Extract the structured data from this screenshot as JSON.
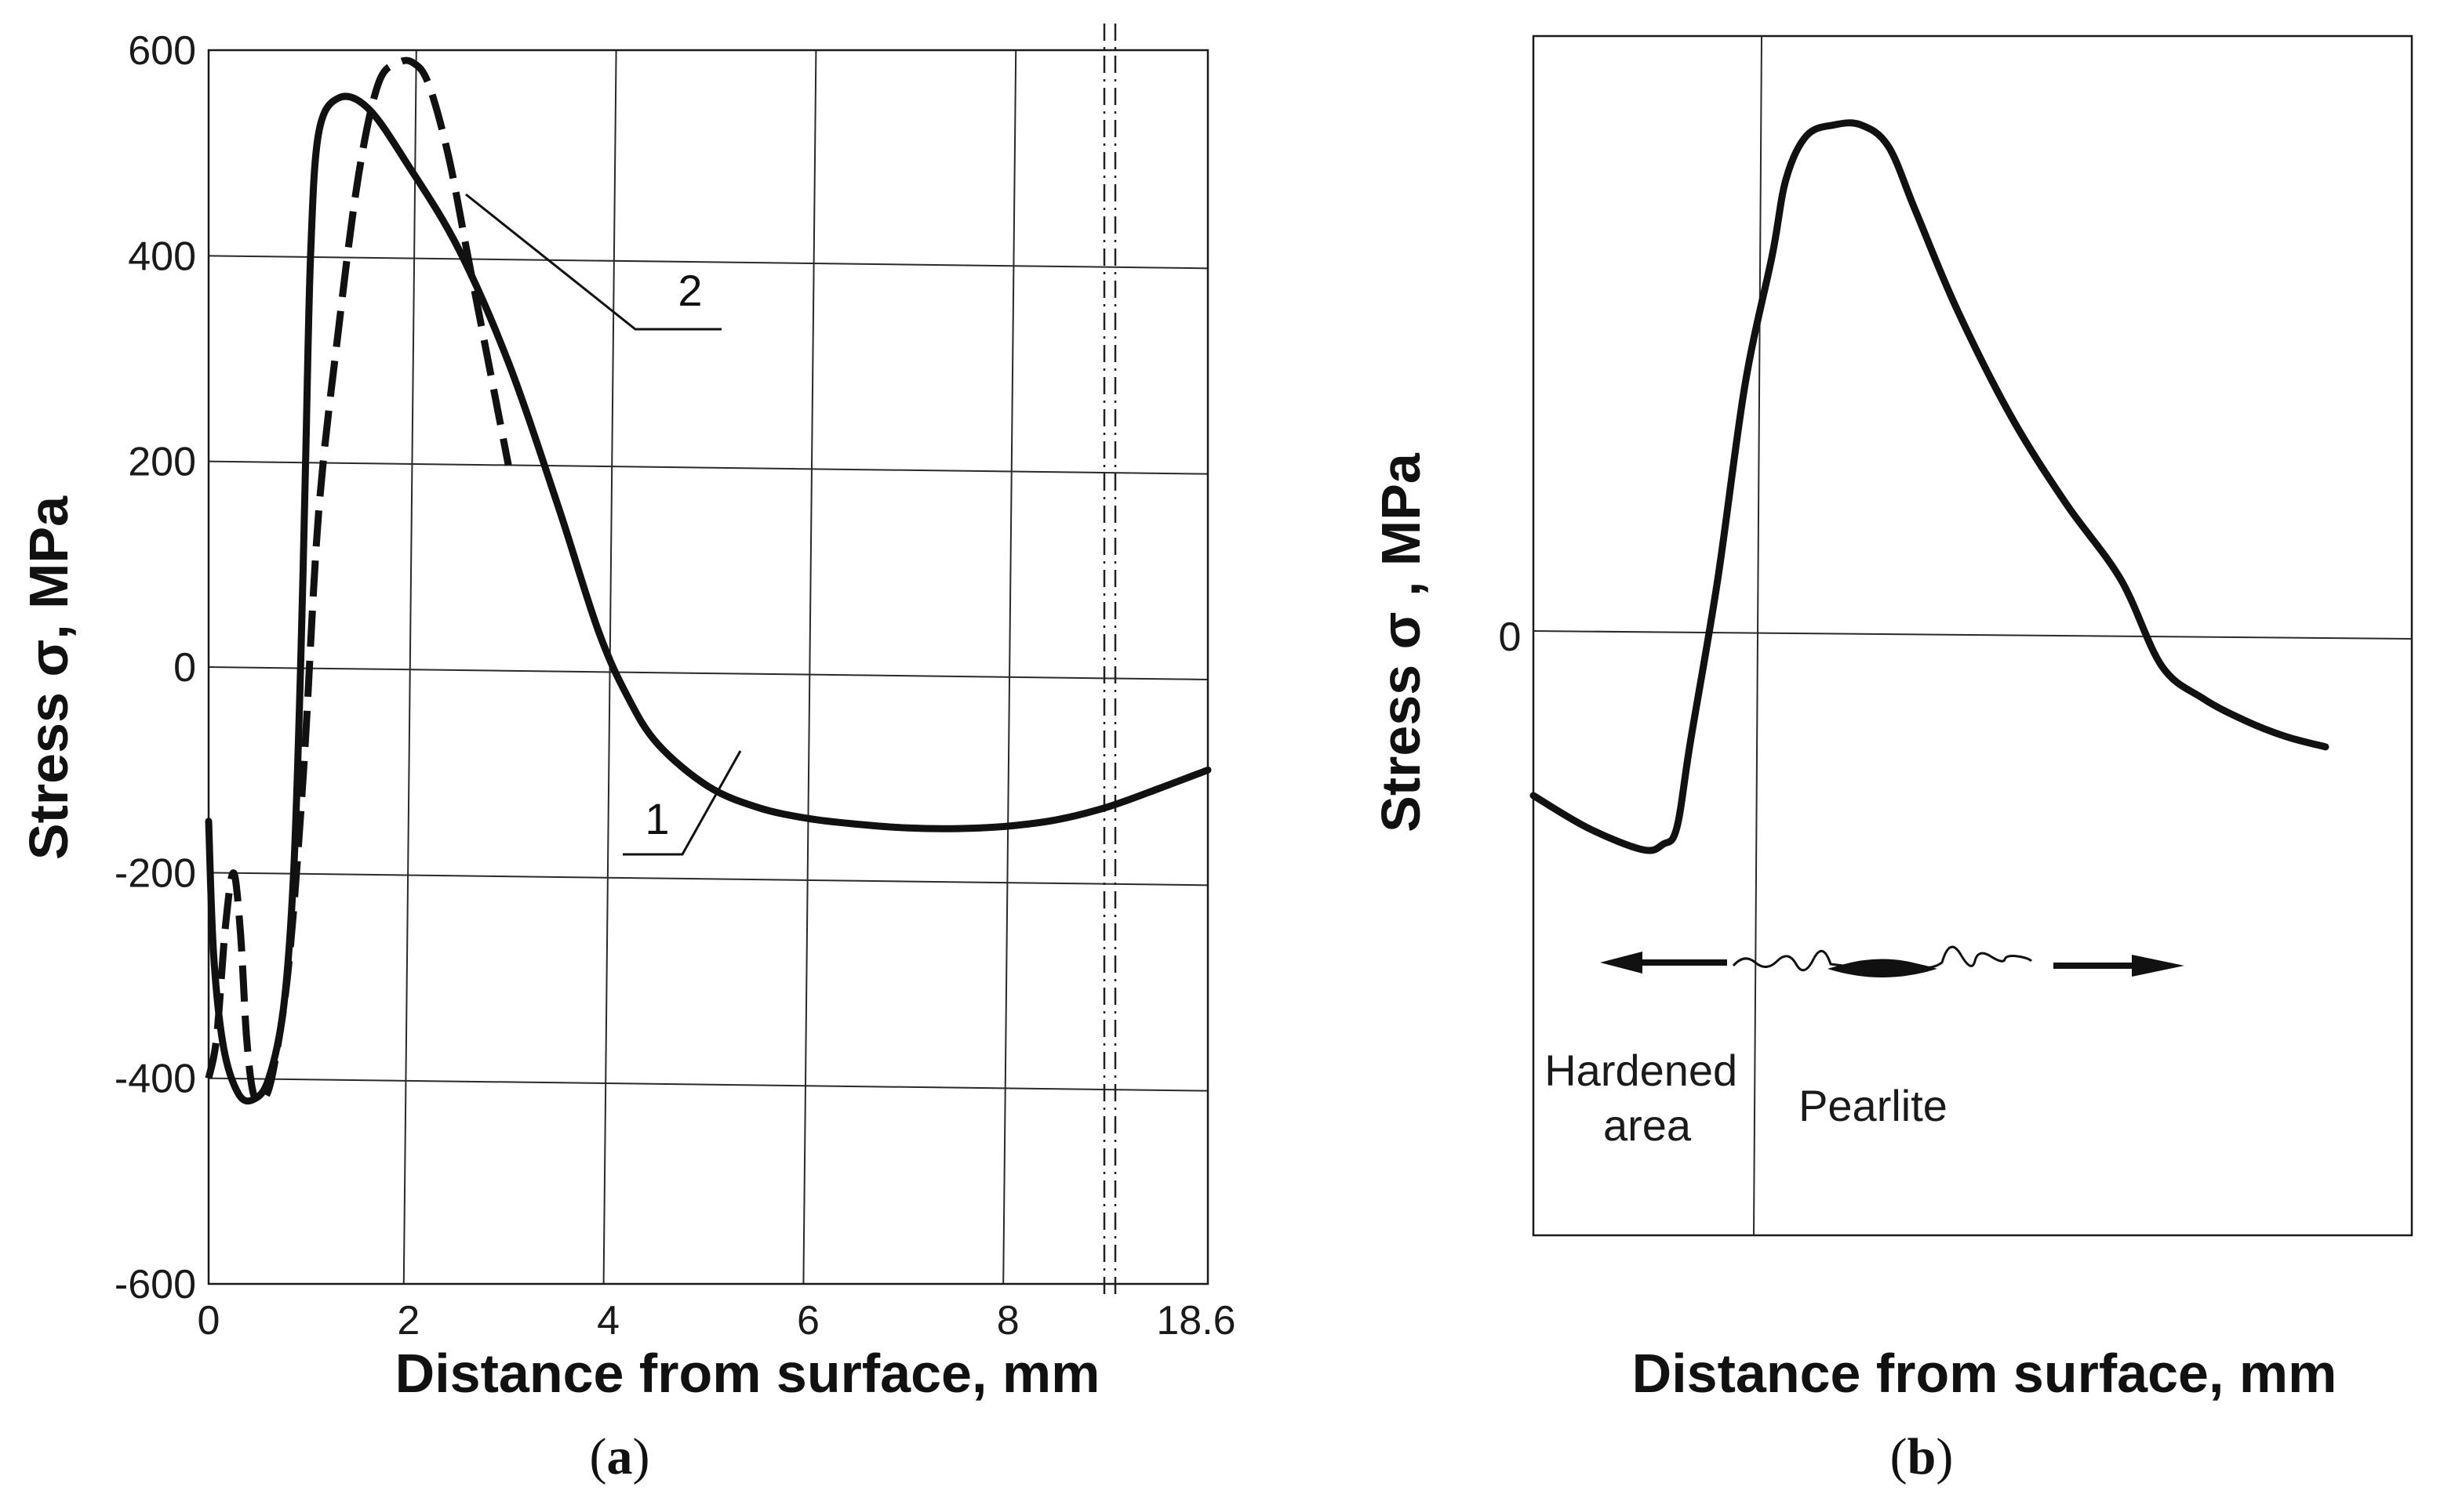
{
  "chart_data": [
    {
      "type": "line",
      "panel_label": "a",
      "xlabel": "Distance from surface, mm",
      "ylabel": "Stress σ, MPa",
      "xlim": [
        0,
        10
      ],
      "ylim": [
        -600,
        600
      ],
      "x_ticks": [
        "0",
        "2",
        "4",
        "6",
        "8",
        "18.6"
      ],
      "y_ticks": [
        "600",
        "400",
        "200",
        "0",
        "-200",
        "-400",
        "-600"
      ],
      "grid": true,
      "axis_break_after_x": 8.9,
      "series": [
        {
          "name": "1",
          "style": "solid",
          "x": [
            0.0,
            0.05,
            0.15,
            0.3,
            0.45,
            0.6,
            0.75,
            0.85,
            0.92,
            0.97,
            1.02,
            1.1,
            1.3,
            1.6,
            2.0,
            2.5,
            3.0,
            3.5,
            3.9,
            4.2,
            4.5,
            5.0,
            5.5,
            6.0,
            6.5,
            7.0,
            7.5,
            8.0,
            8.5,
            9.0,
            9.5,
            10.0
          ],
          "y": [
            -150,
            -280,
            -370,
            -415,
            -420,
            -400,
            -330,
            -200,
            0,
            200,
            400,
            520,
            555,
            545,
            490,
            410,
            300,
            160,
            40,
            -25,
            -70,
            -110,
            -130,
            -140,
            -145,
            -148,
            -148,
            -145,
            -138,
            -125,
            -107,
            -88
          ]
        },
        {
          "name": "2",
          "style": "dashed",
          "x": [
            0.0,
            0.08,
            0.17,
            0.25,
            0.32,
            0.38,
            0.45,
            0.55,
            0.65,
            0.8,
            0.95,
            1.1,
            1.3,
            1.5,
            1.7,
            1.9,
            2.05,
            2.2,
            2.4,
            2.6,
            2.8,
            3.0
          ],
          "y": [
            -400,
            -360,
            -250,
            -200,
            -260,
            -360,
            -415,
            -420,
            -390,
            -290,
            -100,
            150,
            330,
            480,
            570,
            590,
            590,
            570,
            500,
            400,
            300,
            200
          ]
        }
      ],
      "annotations": [
        "1",
        "2"
      ]
    },
    {
      "type": "line",
      "panel_label": "b",
      "xlabel": "Distance from surface, mm",
      "ylabel": "Stress σ , MPa",
      "y_ticks": [
        "0"
      ],
      "x_ticks": [],
      "divider_x": 1.6,
      "regions": [
        "Hardened area",
        "Pearlite"
      ],
      "series": [
        {
          "name": "stress",
          "style": "solid",
          "x": [
            0.0,
            0.4,
            0.8,
            0.95,
            1.05,
            1.15,
            1.35,
            1.55,
            1.75,
            1.85,
            2.0,
            2.2,
            2.4,
            2.6,
            2.8,
            3.1,
            3.5,
            3.9,
            4.3,
            4.6,
            4.9,
            5.2,
            5.5,
            5.8
          ],
          "y": [
            -1.5,
            -1.8,
            -2.0,
            -1.95,
            -1.8,
            -1.0,
            0.5,
            2.3,
            3.5,
            4.2,
            4.6,
            4.7,
            4.7,
            4.5,
            3.9,
            3.0,
            2.0,
            1.2,
            0.5,
            -0.3,
            -0.6,
            -0.8,
            -0.95,
            -1.05
          ]
        }
      ]
    }
  ],
  "captions": {
    "a": {
      "open": "(",
      "letter": "a",
      "close": ")"
    },
    "b": {
      "open": "(",
      "letter": "b",
      "close": ")"
    }
  }
}
